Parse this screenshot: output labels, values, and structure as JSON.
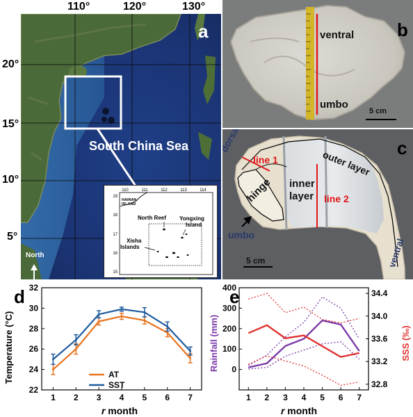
{
  "panel_a": {
    "letter": "a",
    "lon_labels": [
      "110°",
      "120°",
      "130°"
    ],
    "lat_labels": [
      "20°",
      "15°",
      "10°",
      "5°"
    ],
    "sea_label": "South China Sea",
    "north_label": "North",
    "inset": {
      "lon_ticks": [
        "110",
        "111",
        "112",
        "113",
        "114"
      ],
      "lat_ticks": [
        "19",
        "18",
        "17",
        "16",
        "15"
      ],
      "hainan_label_1": "HAINAN",
      "hainan_label_2": "ISLAND",
      "north_reef": "North Reef",
      "yongxing_1": "Yongxing",
      "yongxing_2": "Island",
      "xisha_1": "Xisha",
      "xisha_2": "Islands"
    }
  },
  "panel_b": {
    "letter": "b",
    "ventral": "ventral",
    "umbo": "umbo",
    "scale": "5 cm"
  },
  "panel_c": {
    "letter": "c",
    "dorsal": "dorsal",
    "line1": "line 1",
    "outer_layer": "outer layer",
    "inner_layer_1": "inner",
    "inner_layer_2": "layer",
    "hinge": "hinge",
    "line2": "line 2",
    "umbo": "umbo",
    "scale": "5 cm",
    "ventral": "ventral"
  },
  "chart_data": [
    {
      "type": "line",
      "panel": "d",
      "x": [
        1,
        2,
        3,
        4,
        5,
        6,
        7
      ],
      "xlabel_italic": "r",
      "xlabel": " month",
      "ylabel": "Temperature (°C)",
      "ylim": [
        22,
        32
      ],
      "yticks": [
        22,
        24,
        26,
        28,
        30,
        32
      ],
      "series": [
        {
          "name": "AT",
          "color": "#e8731f",
          "values": [
            24.0,
            26.0,
            28.7,
            29.2,
            28.8,
            27.6,
            25.1
          ],
          "err": [
            0.5,
            0.5,
            0.35,
            0.3,
            0.35,
            0.4,
            0.45
          ]
        },
        {
          "name": "SST",
          "color": "#1f5a9e",
          "values": [
            25.0,
            26.9,
            29.4,
            29.9,
            29.6,
            28.2,
            25.8
          ],
          "err": [
            0.5,
            0.5,
            0.35,
            0.2,
            0.45,
            0.45,
            0.4
          ]
        }
      ],
      "legend_position": "bottom-center"
    },
    {
      "type": "line",
      "panel": "e",
      "x": [
        1,
        2,
        3,
        4,
        5,
        6,
        7
      ],
      "xlabel_italic": "r",
      "xlabel": " month",
      "ylabel_left": "Rainfall (mm)",
      "ylabel_right": "SSS (‰)",
      "ylim_left": [
        -100,
        400
      ],
      "yticks_left": [
        0,
        100,
        200,
        300,
        400
      ],
      "ylim_right": [
        32.7,
        34.5
      ],
      "yticks_right": [
        "32.8",
        "33.2",
        "33.6",
        "34.0",
        "34.4"
      ],
      "series": [
        {
          "name": "Rainfall",
          "axis": "left",
          "color": "#7a3aa8",
          "values": [
            10,
            30,
            115,
            150,
            240,
            220,
            90
          ]
        },
        {
          "name": "Rainfall upper",
          "axis": "left",
          "color": "#7a3aa8",
          "dotted": true,
          "values": [
            20,
            70,
            160,
            230,
            355,
            300,
            150
          ]
        },
        {
          "name": "Rainfall lower",
          "axis": "left",
          "color": "#7a3aa8",
          "dotted": true,
          "values": [
            2,
            10,
            65,
            95,
            125,
            135,
            50
          ]
        },
        {
          "name": "SSS",
          "axis": "right",
          "color": "#e03030",
          "values": [
            33.7,
            33.84,
            33.61,
            33.66,
            33.47,
            33.28,
            33.35
          ]
        },
        {
          "name": "SSS upper",
          "axis": "right",
          "color": "#e03030",
          "dotted": true,
          "values": [
            34.3,
            34.4,
            34.06,
            34.16,
            33.94,
            33.88,
            33.96
          ]
        },
        {
          "name": "SSS lower",
          "axis": "right",
          "color": "#e03030",
          "dotted": true,
          "values": [
            33.15,
            33.3,
            33.21,
            33.12,
            32.96,
            32.78,
            32.84
          ]
        }
      ]
    }
  ]
}
